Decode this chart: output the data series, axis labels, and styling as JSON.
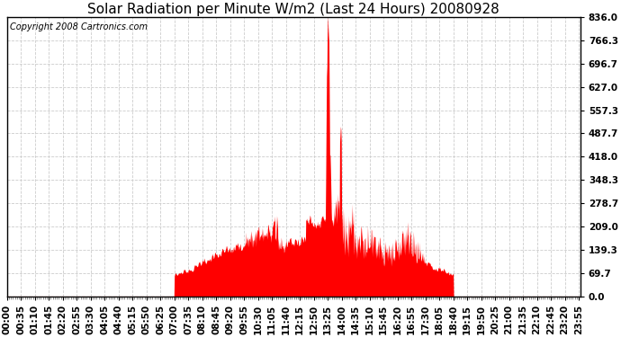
{
  "title": "Solar Radiation per Minute W/m2 (Last 24 Hours) 20080928",
  "copyright": "Copyright 2008 Cartronics.com",
  "yticks": [
    0.0,
    69.7,
    139.3,
    209.0,
    278.7,
    348.3,
    418.0,
    487.7,
    557.3,
    627.0,
    696.7,
    766.3,
    836.0
  ],
  "ymin": 0.0,
  "ymax": 836.0,
  "fill_color": "#ff0000",
  "line_color": "#ff0000",
  "background_color": "#ffffff",
  "plot_background": "#ffffff",
  "grid_color": "#cccccc",
  "title_fontsize": 11,
  "copyright_fontsize": 7,
  "tick_fontsize": 7.5,
  "xtick_interval_min": 35,
  "sunrise_min": 420,
  "sunset_min": 1120
}
